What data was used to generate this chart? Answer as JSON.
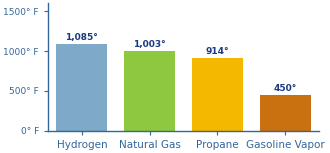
{
  "categories": [
    "Hydrogen",
    "Natural Gas",
    "Propane",
    "Gasoline Vapor"
  ],
  "values": [
    1085,
    1003,
    914,
    450
  ],
  "labels": [
    "1,085°",
    "1,003°",
    "914°",
    "450°"
  ],
  "bar_colors": [
    "#7eaac8",
    "#8dc83e",
    "#f5b800",
    "#c97010"
  ],
  "ylim": [
    0,
    1600
  ],
  "yticks": [
    0,
    500,
    1000,
    1500
  ],
  "ytick_labels": [
    "0° F",
    "500° F",
    "1000° F",
    "1500° F"
  ],
  "background_color": "#ffffff",
  "plot_bg_color": "#ffffff",
  "label_color": "#1a3a80",
  "axis_color": "#336699",
  "tick_color": "#336699",
  "bar_width": 0.75,
  "label_fontsize": 6.5,
  "tick_fontsize": 6.5,
  "xlabel_fontsize": 7.5
}
